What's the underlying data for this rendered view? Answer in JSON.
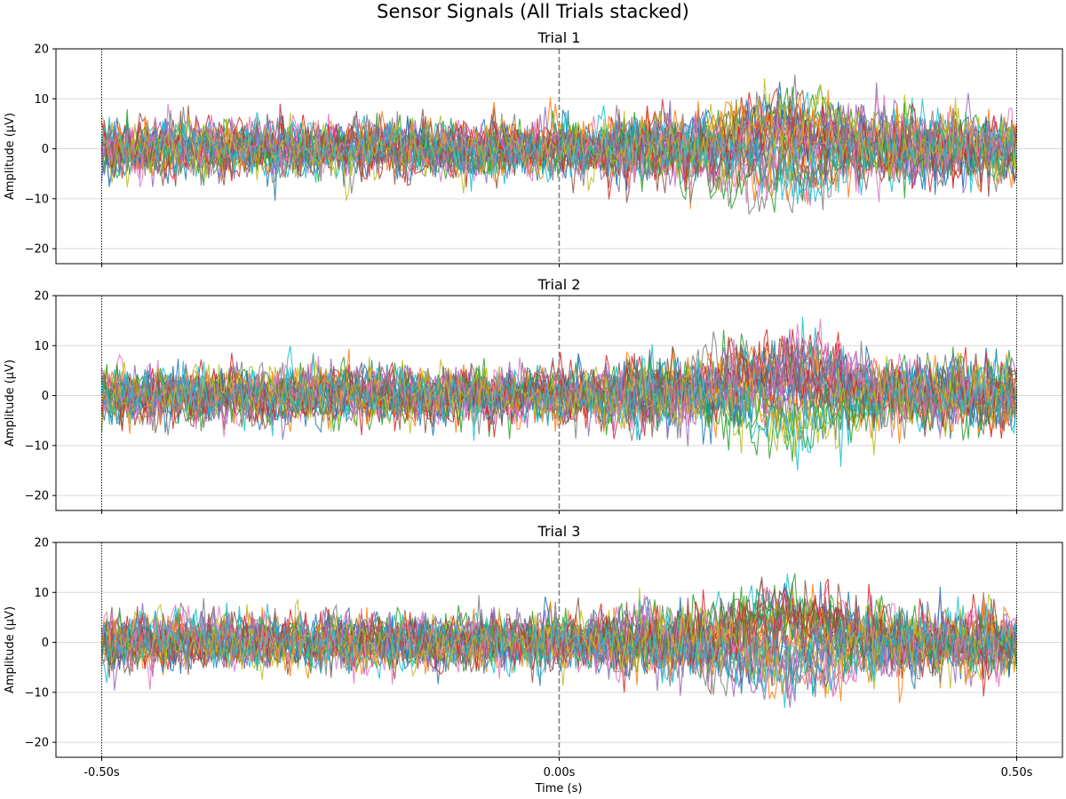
{
  "chart_data": {
    "type": "line",
    "title": "Sensor Signals (All Trials stacked)",
    "xlabel": "Time (s)",
    "ylabel": "Amplitude (µV)",
    "xlim": [
      -0.55,
      0.55
    ],
    "ylim": [
      -23,
      20
    ],
    "x_range": [
      -0.5,
      0.5
    ],
    "x_ticks": [
      -0.5,
      0.0,
      0.5
    ],
    "x_tick_labels": [
      "-0.50s",
      "0.00s",
      "0.50s"
    ],
    "y_ticks": [
      -20,
      -10,
      0,
      10,
      20
    ],
    "y_tick_labels": [
      "−20",
      "−10",
      "0",
      "10",
      "20"
    ],
    "grid": "horizontal",
    "markers": [
      {
        "x": -0.5,
        "style": "dotted",
        "color": "#000000"
      },
      {
        "x": 0.0,
        "style": "dashed",
        "color": "#808080"
      },
      {
        "x": 0.5,
        "style": "dotted",
        "color": "#000000"
      }
    ],
    "series_count": 30,
    "colors": [
      "#1f77b4",
      "#ff7f0e",
      "#2ca02c",
      "#d62728",
      "#9467bd",
      "#8c564b",
      "#e377c2",
      "#7f7f7f",
      "#bcbd22",
      "#17becf"
    ],
    "signal_description": {
      "baseline_noise_amplitude_uV": 4.5,
      "response_window_s": [
        0.1,
        0.5
      ],
      "response_peak_time_s": 0.25,
      "response_peak_amplitude_uV": 6
    },
    "subplots": [
      {
        "title": "Trial 1",
        "seed": 11
      },
      {
        "title": "Trial 2",
        "seed": 23
      },
      {
        "title": "Trial 3",
        "seed": 37
      }
    ]
  }
}
